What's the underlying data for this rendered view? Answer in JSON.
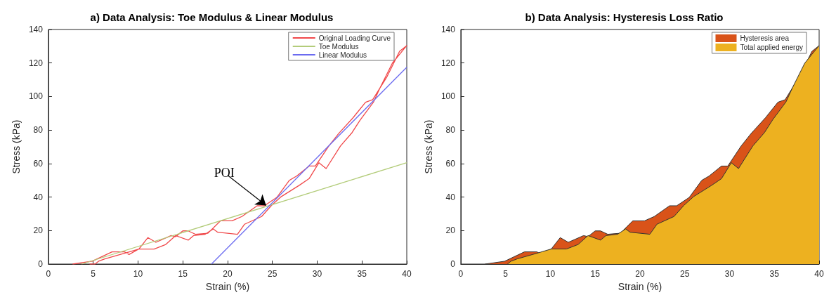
{
  "chart_data": [
    {
      "type": "line",
      "title": "a) Data Analysis: Toe Modulus & Linear Modulus",
      "xlabel": "Strain (%)",
      "ylabel": "Stress (kPa)",
      "xlim": [
        0,
        40
      ],
      "xticks": [
        0,
        5,
        10,
        15,
        20,
        25,
        30,
        35,
        40
      ],
      "ylim": [
        0,
        140
      ],
      "yticks": [
        0,
        20,
        40,
        60,
        80,
        100,
        120,
        140
      ],
      "grid": false,
      "legend": "top right",
      "marker": "none",
      "annotations": [
        {
          "text": "POI",
          "x": 24.3,
          "y": 35
        }
      ],
      "series": [
        {
          "name": "Original Loading Curve",
          "color": "#f0484a",
          "x": [
            2.7,
            4.9,
            7.1,
            8.5,
            9.0,
            10.1,
            11.1,
            12.0,
            13.7,
            14.2,
            15.0,
            15.6,
            16.4,
            17.8,
            19.2,
            20.5,
            21.6,
            23.3,
            24.1,
            25.5,
            26.9,
            27.7,
            29.1,
            29.8,
            31.3,
            32.4,
            34.0,
            35.4,
            36.2,
            37.8,
            39.2,
            40,
            38.4,
            37.0,
            36.3,
            34.8,
            33.9,
            32.6,
            31.0,
            30.2,
            29.1,
            28.0,
            26.0,
            24.9,
            23.8,
            21.9,
            21.1,
            20.0,
            18.9,
            18.4,
            17.5,
            16.2,
            15.6,
            14.2,
            13.1,
            11.8,
            10.1,
            8.9,
            8.0,
            6.3,
            5.6,
            5.2,
            4.6
          ],
          "values": [
            0,
            1.7,
            7.3,
            7.3,
            5.7,
            9,
            15.8,
            13,
            17,
            16.4,
            19.8,
            19.8,
            17.8,
            18.4,
            25.8,
            25.8,
            28.4,
            34.8,
            34.8,
            39.8,
            50,
            52.5,
            58.5,
            58.5,
            70.5,
            77.9,
            87.3,
            96.6,
            98.1,
            111.9,
            127,
            130.4,
            120,
            105,
            96.8,
            86,
            78.5,
            70.5,
            57,
            60.5,
            51,
            47,
            40.3,
            35,
            28.4,
            23.8,
            17.8,
            18.4,
            19,
            21,
            17.8,
            17,
            14.3,
            17,
            11.7,
            9,
            9,
            7.1,
            5.7,
            3.1,
            1.7,
            0,
            0
          ]
        },
        {
          "name": "Toe Modulus",
          "color": "#b3cc7a",
          "x": [
            3.7,
            40
          ],
          "values": [
            0,
            60.5
          ]
        },
        {
          "name": "Linear Modulus",
          "color": "#6b6bf0",
          "x": [
            18.2,
            40
          ],
          "values": [
            0,
            117.5
          ]
        }
      ]
    },
    {
      "type": "area",
      "title": "b) Data Analysis: Hysteresis Loss Ratio",
      "xlabel": "Strain (%)",
      "ylabel": "Stress (kPa)",
      "xlim": [
        0,
        40
      ],
      "xticks": [
        0,
        5,
        10,
        15,
        20,
        25,
        30,
        35,
        40
      ],
      "ylim": [
        0,
        140
      ],
      "yticks": [
        0,
        20,
        40,
        60,
        80,
        100,
        120,
        140
      ],
      "grid": false,
      "legend": "top right",
      "marker": "none",
      "series": [
        {
          "name": "Hysteresis area",
          "color": "#d95319",
          "x": [
            2.7,
            4.9,
            7.1,
            8.5,
            9.0,
            10.1,
            11.1,
            12.0,
            13.7,
            14.2,
            15.0,
            15.6,
            16.4,
            17.8,
            19.2,
            20.5,
            21.6,
            23.3,
            24.1,
            25.5,
            26.9,
            27.7,
            29.1,
            29.8,
            31.3,
            32.4,
            34.0,
            35.4,
            36.2,
            37.8,
            39.2,
            40
          ],
          "values": [
            0,
            1.7,
            7.3,
            7.3,
            5.7,
            9,
            15.8,
            13,
            17,
            16.4,
            19.8,
            19.8,
            17.8,
            18.4,
            25.8,
            25.8,
            28.4,
            34.8,
            34.8,
            39.8,
            50,
            52.5,
            58.5,
            58.5,
            70.5,
            77.9,
            87.3,
            96.6,
            98.1,
            111.9,
            127,
            130.4
          ]
        },
        {
          "name": "Total applied energy",
          "color": "#edb120",
          "x": [
            5.2,
            5.6,
            6.3,
            8.0,
            8.9,
            10.1,
            11.8,
            13.1,
            14.2,
            15.6,
            16.2,
            17.5,
            18.4,
            18.9,
            20.0,
            21.1,
            21.9,
            23.8,
            24.9,
            26.0,
            28.0,
            29.1,
            30.2,
            31.0,
            32.6,
            33.9,
            34.8,
            36.3,
            37.0,
            38.4,
            40
          ],
          "values": [
            0,
            1.7,
            3.1,
            5.7,
            7.1,
            9,
            9,
            11.7,
            17,
            14.3,
            17,
            17.8,
            21,
            19,
            18.4,
            17.8,
            23.8,
            28.4,
            35,
            40.3,
            47,
            51,
            60.5,
            57,
            70.5,
            78.5,
            86,
            96.8,
            105,
            120,
            130.4
          ]
        }
      ]
    }
  ]
}
